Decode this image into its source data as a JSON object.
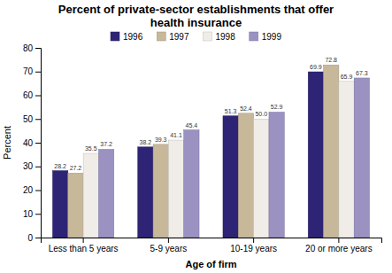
{
  "chart_data": {
    "type": "bar",
    "title": "Percent of private-sector establishments that offer\nhealth insurance",
    "x_label": "Age of firm",
    "y_label": "Percent",
    "categories": [
      "Less than 5 years",
      "5-9 years",
      "10-19 years",
      "20 or more years"
    ],
    "series": [
      {
        "name": "1996",
        "color": "#2e2475",
        "values": [
          28.2,
          38.2,
          51.3,
          69.9
        ],
        "value_labels": [
          "28.2",
          "38.2",
          "51.3",
          "69.9"
        ]
      },
      {
        "name": "1997",
        "color": "#c8b89a",
        "values": [
          27.2,
          39.3,
          52.4,
          72.8
        ],
        "value_labels": [
          "27.2",
          "39.3",
          "52.4",
          "72.8"
        ]
      },
      {
        "name": "1998",
        "color": "#f0ece8",
        "values": [
          35.5,
          41.1,
          50.0,
          65.9
        ],
        "value_labels": [
          "35.5",
          "41.1",
          "50.0",
          "65.9"
        ]
      },
      {
        "name": "1999",
        "color": "#9b92c2",
        "values": [
          37.2,
          45.4,
          52.9,
          67.3
        ],
        "value_labels": [
          "37.2",
          "45.4",
          "52.9",
          "67.3"
        ]
      }
    ],
    "ylim": [
      0,
      80
    ],
    "yticks": [
      0,
      10,
      20,
      30,
      40,
      50,
      60,
      70,
      80
    ],
    "grid": false,
    "legend": "top",
    "data_labels": true
  }
}
